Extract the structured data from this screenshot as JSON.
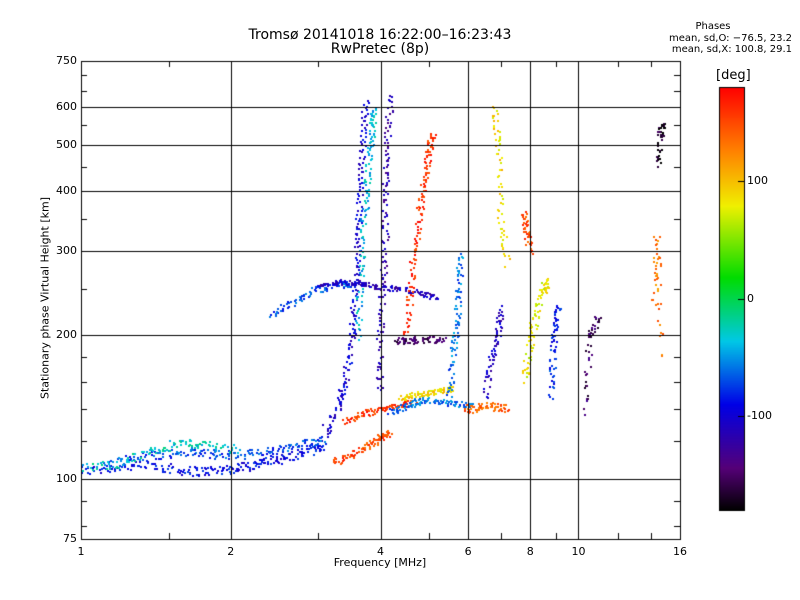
{
  "title_line1": "Tromsø 20141018 16:22:00–16:23:43",
  "title_line2": "RwPretec (8p)",
  "phase_heading": "Phases",
  "phase_o": "mean, sd,O: −76.5, 23.2",
  "phase_x": "mean, sd,X: 100.8, 29.1",
  "colorbar_unit": "[deg]",
  "chart_data": {
    "type": "scatter",
    "xlabel": "Frequency [MHz]",
    "ylabel": "Stationary phase Virtual Height [km]",
    "xscale": "log",
    "yscale": "log",
    "xlim": [
      1,
      16
    ],
    "ylim": [
      75,
      750
    ],
    "xticks": [
      1,
      2,
      4,
      6,
      8,
      10,
      16
    ],
    "yticks": [
      75,
      100,
      200,
      300,
      400,
      500,
      600,
      750
    ],
    "grid": true,
    "colorbar": {
      "label": "[deg]",
      "range": [
        -180,
        180
      ],
      "ticks": [
        -100,
        0,
        100
      ]
    },
    "traces": [
      {
        "phase": -90,
        "spread_km": 2.5,
        "points": [
          [
            1.0,
            104
          ],
          [
            1.2,
            106
          ],
          [
            1.4,
            107
          ],
          [
            1.6,
            104
          ],
          [
            1.8,
            104
          ],
          [
            2.0,
            105
          ],
          [
            2.2,
            107
          ],
          [
            2.4,
            109
          ],
          [
            2.6,
            111
          ],
          [
            2.9,
            115
          ],
          [
            3.1,
            118
          ]
        ]
      },
      {
        "phase": -70,
        "spread_km": 2.5,
        "points": [
          [
            1.1,
            107
          ],
          [
            1.3,
            111
          ],
          [
            1.5,
            113
          ],
          [
            1.7,
            114
          ],
          [
            1.9,
            112
          ],
          [
            2.2,
            113
          ],
          [
            2.5,
            115
          ],
          [
            2.8,
            118
          ],
          [
            3.1,
            122
          ]
        ]
      },
      {
        "phase": -30,
        "spread_km": 2.5,
        "points": [
          [
            1.0,
            105
          ],
          [
            1.2,
            108
          ],
          [
            1.4,
            115
          ],
          [
            1.6,
            119
          ],
          [
            1.8,
            118
          ],
          [
            2.1,
            115
          ]
        ]
      },
      {
        "phase": -100,
        "spread_km": 4,
        "points": [
          [
            3.1,
            125
          ],
          [
            3.3,
            140
          ],
          [
            3.4,
            160
          ],
          [
            3.5,
            190
          ],
          [
            3.55,
            230
          ],
          [
            3.6,
            280
          ],
          [
            3.62,
            340
          ],
          [
            3.65,
            420
          ],
          [
            3.7,
            520
          ],
          [
            3.75,
            620
          ]
        ]
      },
      {
        "phase": -40,
        "spread_km": 5,
        "points": [
          [
            3.6,
            200
          ],
          [
            3.65,
            260
          ],
          [
            3.7,
            330
          ],
          [
            3.75,
            400
          ],
          [
            3.8,
            470
          ],
          [
            3.85,
            540
          ],
          [
            3.9,
            600
          ]
        ]
      },
      {
        "phase": -120,
        "spread_km": 5,
        "points": [
          [
            4.0,
            150
          ],
          [
            4.0,
            200
          ],
          [
            4.05,
            260
          ],
          [
            4.1,
            330
          ],
          [
            4.1,
            420
          ],
          [
            4.15,
            520
          ],
          [
            4.2,
            640
          ]
        ]
      },
      {
        "phase": -70,
        "spread_km": 4,
        "points": [
          [
            2.4,
            220
          ],
          [
            2.7,
            235
          ],
          [
            3.0,
            250
          ],
          [
            3.3,
            255
          ],
          [
            3.5,
            255
          ]
        ]
      },
      {
        "phase": -110,
        "spread_km": 3,
        "points": [
          [
            3.0,
            255
          ],
          [
            3.3,
            258
          ],
          [
            3.6,
            258
          ],
          [
            3.9,
            252
          ],
          [
            4.3,
            250
          ],
          [
            4.8,
            245
          ],
          [
            5.2,
            240
          ]
        ]
      },
      {
        "phase": 150,
        "spread_km": 2,
        "points": [
          [
            3.2,
            108
          ],
          [
            3.5,
            112
          ],
          [
            3.8,
            118
          ],
          [
            4.0,
            122
          ],
          [
            4.2,
            125
          ]
        ]
      },
      {
        "phase": 160,
        "spread_km": 2,
        "points": [
          [
            3.4,
            132
          ],
          [
            3.7,
            137
          ],
          [
            4.0,
            140
          ],
          [
            4.3,
            142
          ],
          [
            4.7,
            145
          ]
        ]
      },
      {
        "phase": -60,
        "spread_km": 2,
        "points": [
          [
            4.2,
            138
          ],
          [
            4.5,
            142
          ],
          [
            4.8,
            146
          ],
          [
            5.2,
            146
          ],
          [
            5.6,
            144
          ],
          [
            6.2,
            142
          ]
        ]
      },
      {
        "phase": 90,
        "spread_km": 2,
        "points": [
          [
            4.4,
            148
          ],
          [
            4.7,
            150
          ],
          [
            5.0,
            151
          ],
          [
            5.3,
            153
          ],
          [
            5.6,
            155
          ]
        ]
      },
      {
        "phase": 160,
        "spread_km": 4,
        "points": [
          [
            4.5,
            200
          ],
          [
            4.6,
            250
          ],
          [
            4.7,
            300
          ],
          [
            4.8,
            360
          ],
          [
            4.9,
            420
          ],
          [
            5.0,
            480
          ],
          [
            5.1,
            530
          ]
        ]
      },
      {
        "phase": -150,
        "spread_km": 3,
        "points": [
          [
            4.3,
            195
          ],
          [
            4.6,
            195
          ],
          [
            5.0,
            196
          ],
          [
            5.4,
            195
          ]
        ]
      },
      {
        "phase": -60,
        "spread_km": 4,
        "points": [
          [
            5.5,
            150
          ],
          [
            5.6,
            180
          ],
          [
            5.7,
            210
          ],
          [
            5.75,
            250
          ],
          [
            5.8,
            300
          ]
        ]
      },
      {
        "phase": 140,
        "spread_km": 3,
        "points": [
          [
            6.0,
            140
          ],
          [
            6.3,
            141
          ],
          [
            6.8,
            142
          ],
          [
            7.2,
            140
          ]
        ]
      },
      {
        "phase": -110,
        "spread_km": 5,
        "points": [
          [
            6.5,
            150
          ],
          [
            6.7,
            180
          ],
          [
            6.9,
            200
          ],
          [
            7.0,
            230
          ]
        ]
      },
      {
        "phase": 90,
        "spread_km": 5,
        "points": [
          [
            6.8,
            600
          ],
          [
            6.9,
            500
          ],
          [
            7.0,
            350
          ],
          [
            7.2,
            280
          ]
        ]
      },
      {
        "phase": 80,
        "spread_km": 6,
        "points": [
          [
            7.8,
            160
          ],
          [
            8.0,
            190
          ],
          [
            8.2,
            220
          ],
          [
            8.5,
            250
          ],
          [
            8.7,
            260
          ]
        ]
      },
      {
        "phase": -80,
        "spread_km": 6,
        "points": [
          [
            8.8,
            150
          ],
          [
            8.9,
            180
          ],
          [
            9.0,
            210
          ],
          [
            9.1,
            235
          ]
        ]
      },
      {
        "phase": 150,
        "spread_km": 6,
        "points": [
          [
            7.8,
            360
          ],
          [
            7.9,
            330
          ],
          [
            8.0,
            300
          ]
        ]
      },
      {
        "phase": -150,
        "spread_km": 4,
        "points": [
          [
            10.3,
            140
          ],
          [
            10.6,
            200
          ],
          [
            11.0,
            220
          ]
        ]
      },
      {
        "phase": -170,
        "spread_km": 10,
        "points": [
          [
            14.5,
            450
          ],
          [
            14.6,
            520
          ],
          [
            14.8,
            560
          ]
        ]
      },
      {
        "phase": 130,
        "spread_km": 10,
        "points": [
          [
            14.2,
            240
          ],
          [
            14.4,
            320
          ],
          [
            14.7,
            180
          ]
        ]
      }
    ]
  }
}
